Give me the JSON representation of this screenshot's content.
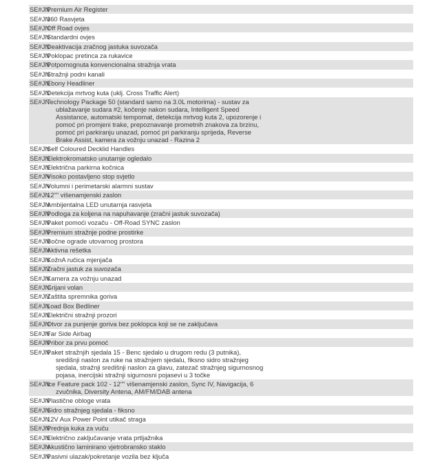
{
  "code": "SE#JN",
  "items": [
    {
      "lines": [
        "Premium Air Register"
      ]
    },
    {
      "lines": [
        "360 Rasvjeta"
      ]
    },
    {
      "lines": [
        "Off Road ovjes"
      ]
    },
    {
      "lines": [
        "Standardni ovjes"
      ]
    },
    {
      "lines": [
        "Deaktivacija zračnog jastuka suvozača"
      ]
    },
    {
      "lines": [
        "Poklopac pretinca za rukavice"
      ]
    },
    {
      "lines": [
        "Potpomognuta konvencionalna stražnja vrata"
      ]
    },
    {
      "lines": [
        "Stražnji podni kanali"
      ]
    },
    {
      "lines": [
        "Ebony Headliner"
      ]
    },
    {
      "lines": [
        "Detekcija mrtvog kuta (uklj. Cross Traffic Alert)"
      ]
    },
    {
      "lines": [
        "Technology Package 50 (standard samo na 3.0L motorima) - sustav za",
        "ublažavanje sudara #2, kočenje nakon sudara, Intelligent Speed",
        "Assistance, automatski tempomat, detekcija mrtvog kuta 2, upozorenje i",
        "pomoć pri promjeni trake, prepoznavanje prometnih znakova za brzinu,",
        "pomoć pri parkiranju unazad, pomoć pri parkiranju sprijeda, Reverse",
        "Brake Assist, kamera za vožnju unazad - Razina 2"
      ]
    },
    {
      "lines": [
        "Self Coloured Decklid Handles"
      ]
    },
    {
      "lines": [
        "Elektrokromatsko unutarnje ogledalo"
      ]
    },
    {
      "lines": [
        "Električna parkirna kočnica"
      ]
    },
    {
      "lines": [
        "Visoko postavljeno stop svjetlo"
      ]
    },
    {
      "lines": [
        "Volumni i perimetarski alarmni sustav"
      ]
    },
    {
      "lines": [
        "12\"\" višenamjenski zaslon"
      ]
    },
    {
      "lines": [
        "Ambijentalna LED unutarnja rasvjeta"
      ]
    },
    {
      "lines": [
        "Podloga za koljena na napuhavanje (zračni jastuk suvozača)"
      ]
    },
    {
      "lines": [
        "Paket pomoći vozaču - Off-Road SYNC zaslon"
      ]
    },
    {
      "lines": [
        "Premium stražnje podne prostirke"
      ]
    },
    {
      "lines": [
        "Bočne ograde utovarnog prostora"
      ]
    },
    {
      "lines": [
        "Aktivna rešetka"
      ]
    },
    {
      "lines": [
        "KožnA ručica mjenjača"
      ]
    },
    {
      "lines": [
        "Zračni jastuk za suvozača"
      ]
    },
    {
      "lines": [
        "Kamera za vožnju unazad"
      ]
    },
    {
      "lines": [
        "Grijani volan"
      ]
    },
    {
      "lines": [
        "Zaštita spremnika goriva"
      ]
    },
    {
      "lines": [
        "Load Box Bedliner"
      ]
    },
    {
      "lines": [
        "Električni stražnji prozori"
      ]
    },
    {
      "lines": [
        "Otvor za punjenje goriva bez poklopca koji se ne zaključava"
      ]
    },
    {
      "lines": [
        "Far Side Airbag"
      ]
    },
    {
      "lines": [
        "Pribor za prvu pomoć"
      ]
    },
    {
      "lines": [
        "Paket stražnjih sjedala 15 - Benc sjedalo u drugom redu (3 putnika),",
        "središnji naslon za ruke na stražnjem sjedalu, fiksno sidro stražnjeg",
        "sjedala, stražnji središnji naslon za glavu, zatezač stražnjeg sigurnosnog",
        "pojasa, inercijski stražnji sigurnosni pojasevi u 3 točke"
      ]
    },
    {
      "lines": [
        "Ice Feature pack 102 - 12\"\" višenamjenski zaslon, Sync IV, Navigacija, 6",
        "zvučnika, Diversity Antena, AM/FM/DAB antena"
      ]
    },
    {
      "lines": [
        "Plastične obloge vrata"
      ]
    },
    {
      "lines": [
        "Sidro stražnjeg sjedala - fiksno"
      ]
    },
    {
      "lines": [
        "12V Aux Power Point utikač straga"
      ]
    },
    {
      "lines": [
        "Prednja kuka za vuču"
      ]
    },
    {
      "lines": [
        "Električno zaključavanje vrata prtljažnika"
      ]
    },
    {
      "lines": [
        "Akustično laminirano vjetrobransko staklo"
      ]
    },
    {
      "lines": [
        "Pasivni ulazak/pokretanje vozila bez ključa"
      ]
    }
  ],
  "colors": {
    "row_alt": "#e2e2e2",
    "text": "#3a3a3a"
  }
}
